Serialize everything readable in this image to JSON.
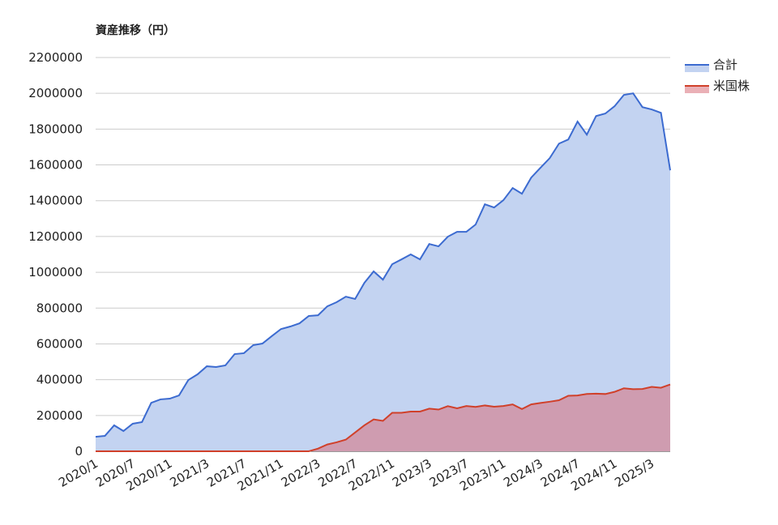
{
  "chart_data": {
    "type": "area",
    "title": "資産推移（円）",
    "categories": [
      "2020/1",
      null,
      null,
      null,
      "2020/7",
      null,
      null,
      null,
      "2020/11",
      null,
      null,
      null,
      "2021/3",
      null,
      null,
      null,
      "2021/7",
      null,
      null,
      null,
      "2021/11",
      null,
      null,
      null,
      "2022/3",
      null,
      null,
      null,
      "2022/7",
      null,
      null,
      null,
      "2022/11",
      null,
      null,
      null,
      "2023/3",
      null,
      null,
      null,
      "2023/7",
      null,
      null,
      null,
      "2023/11",
      null,
      null,
      null,
      "2024/3",
      null,
      null,
      null,
      "2024/7",
      null,
      null,
      null,
      "2024/11",
      null,
      null,
      null,
      "2025/3",
      null,
      null
    ],
    "series": [
      {
        "name": "合計",
        "color": "#3c6bd0",
        "fill": "#c3d3f1",
        "values": [
          81000,
          86000,
          145000,
          113000,
          154000,
          163000,
          271000,
          290000,
          294000,
          312000,
          398000,
          430000,
          475000,
          471000,
          480000,
          543000,
          548000,
          593000,
          602000,
          643000,
          683000,
          697000,
          715000,
          756000,
          760000,
          810000,
          833000,
          864000,
          851000,
          941000,
          1005000,
          959000,
          1045000,
          1072000,
          1100000,
          1072000,
          1158000,
          1145000,
          1199000,
          1226000,
          1226000,
          1267000,
          1380000,
          1362000,
          1403000,
          1471000,
          1439000,
          1529000,
          1584000,
          1638000,
          1719000,
          1742000,
          1842000,
          1769000,
          1873000,
          1887000,
          1928000,
          1991000,
          2000000,
          1923000,
          1910000,
          1891000,
          1570000
        ]
      },
      {
        "name": "米国株",
        "color": "#d0402a",
        "fill": "#d9707a",
        "values": [
          0,
          0,
          0,
          0,
          0,
          0,
          0,
          0,
          0,
          0,
          0,
          0,
          0,
          0,
          0,
          0,
          0,
          0,
          0,
          0,
          0,
          0,
          0,
          0,
          15000,
          38000,
          50000,
          65000,
          105000,
          145000,
          178000,
          170000,
          215000,
          215000,
          222000,
          222000,
          238000,
          233000,
          252000,
          240000,
          253000,
          248000,
          256000,
          249000,
          253000,
          262000,
          236000,
          262000,
          270000,
          277000,
          285000,
          310000,
          312000,
          320000,
          322000,
          320000,
          332000,
          352000,
          347000,
          348000,
          360000,
          355000,
          373000
        ]
      }
    ],
    "ylim": [
      0,
      2200000
    ],
    "yticks": [
      0,
      200000,
      400000,
      600000,
      800000,
      1000000,
      1200000,
      1400000,
      1600000,
      1800000,
      2000000,
      2200000
    ],
    "grid": true,
    "legend": "right"
  }
}
